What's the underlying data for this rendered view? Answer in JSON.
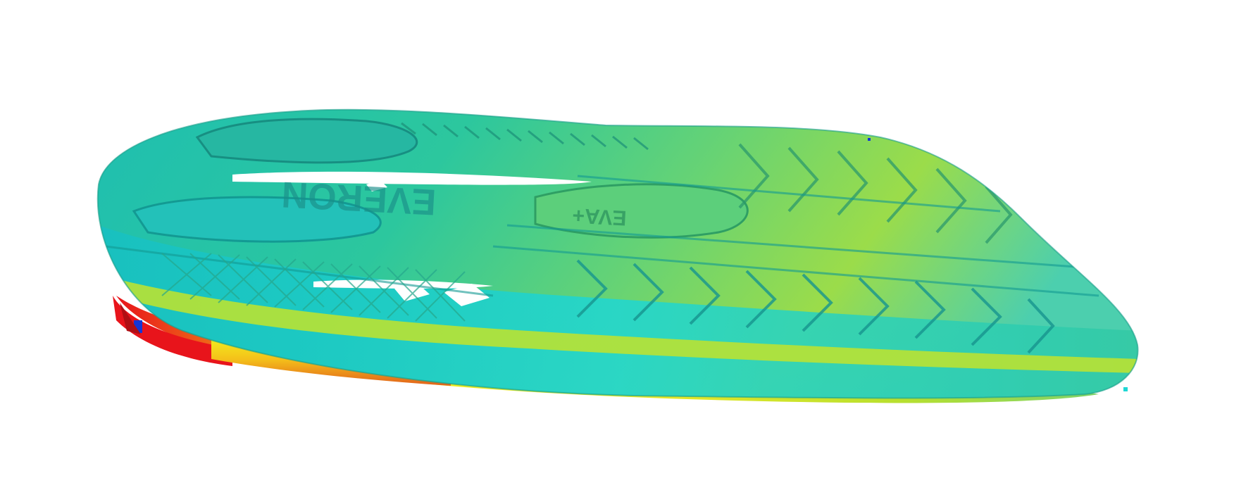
{
  "scene": {
    "background_color": "#ffffff",
    "subject": "shoe-outsole-3d-scan",
    "sole_text": [
      "EVERON",
      "EVA+"
    ],
    "colormap": {
      "red": "#e8141b",
      "orange": "#f07b17",
      "yellow": "#f2ef1d",
      "yellow_green": "#b7e02f",
      "green": "#55d66c",
      "teal": "#2bbfa6",
      "cyan": "#1ed7d4",
      "blue": "#1536d6",
      "dark_blue": "#0a1aa8",
      "highlight": "#ffffff"
    }
  }
}
